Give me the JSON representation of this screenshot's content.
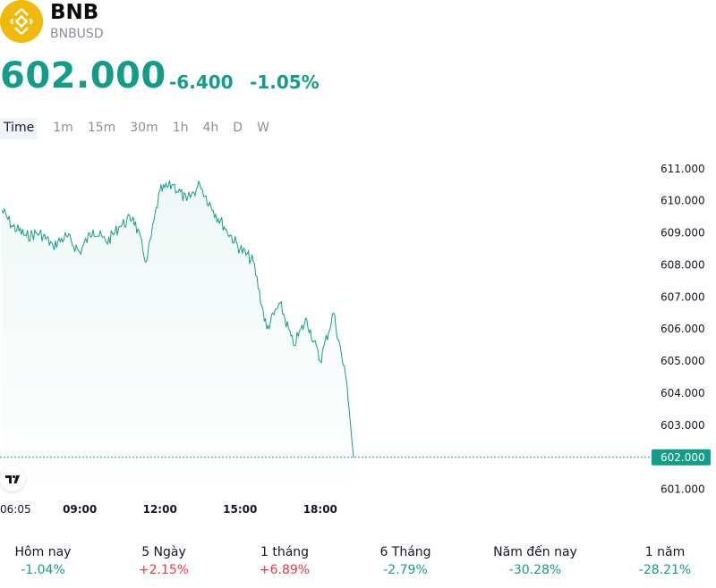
{
  "colors": {
    "accent": "#139d88",
    "logo_bg": "#f0b90b",
    "negative_change": "#139d88",
    "positive_change": "#f23645"
  },
  "header": {
    "symbol": "BNB",
    "pair": "BNBUSD",
    "price": "602.000",
    "change_abs": "-6.400",
    "change_pct": "-1.05%",
    "logo_icon": "bnb-logo-icon"
  },
  "timeframes": [
    "Time",
    "1m",
    "15m",
    "30m",
    "1h",
    "4h",
    "D",
    "W"
  ],
  "chart_data": {
    "type": "area",
    "x": [
      "06:05",
      "06:30",
      "07:00",
      "07:30",
      "08:00",
      "08:30",
      "09:00",
      "09:30",
      "10:00",
      "10:30",
      "11:00",
      "11:30",
      "12:00",
      "12:30",
      "13:00",
      "13:30",
      "14:00",
      "14:30",
      "15:00",
      "15:30",
      "16:00",
      "16:30",
      "17:00",
      "17:30",
      "18:00",
      "18:30",
      "19:00",
      "19:15"
    ],
    "y": [
      609.7,
      609.2,
      608.9,
      609.0,
      608.6,
      608.9,
      608.4,
      609.1,
      608.7,
      609.2,
      609.5,
      608.1,
      610.3,
      610.5,
      610.0,
      610.5,
      609.7,
      609.1,
      608.5,
      608.1,
      606.0,
      606.8,
      605.5,
      606.3,
      605.0,
      606.5,
      604.3,
      602.0
    ],
    "ylim": [
      600.6,
      611.3
    ],
    "yticks": [
      "611.000",
      "610.000",
      "609.000",
      "608.000",
      "607.000",
      "606.000",
      "605.000",
      "604.000",
      "603.000",
      "602.000",
      "601.000"
    ],
    "xticks": [
      "06:05",
      "09:00",
      "12:00",
      "15:00",
      "18:00"
    ],
    "last_value": "602.000",
    "grid": false,
    "tradingview_icon": "tradingview-logo-icon"
  },
  "periods": [
    {
      "label": "Hôm nay",
      "value": "-1.04%",
      "dir": "neg"
    },
    {
      "label": "5 Ngày",
      "value": "+2.15%",
      "dir": "pos"
    },
    {
      "label": "1 tháng",
      "value": "+6.89%",
      "dir": "pos"
    },
    {
      "label": "6 Tháng",
      "value": "-2.79%",
      "dir": "neg"
    },
    {
      "label": "Năm đến nay",
      "value": "-30.28%",
      "dir": "neg"
    },
    {
      "label": "1 năm",
      "value": "-28.21%",
      "dir": "neg"
    }
  ]
}
